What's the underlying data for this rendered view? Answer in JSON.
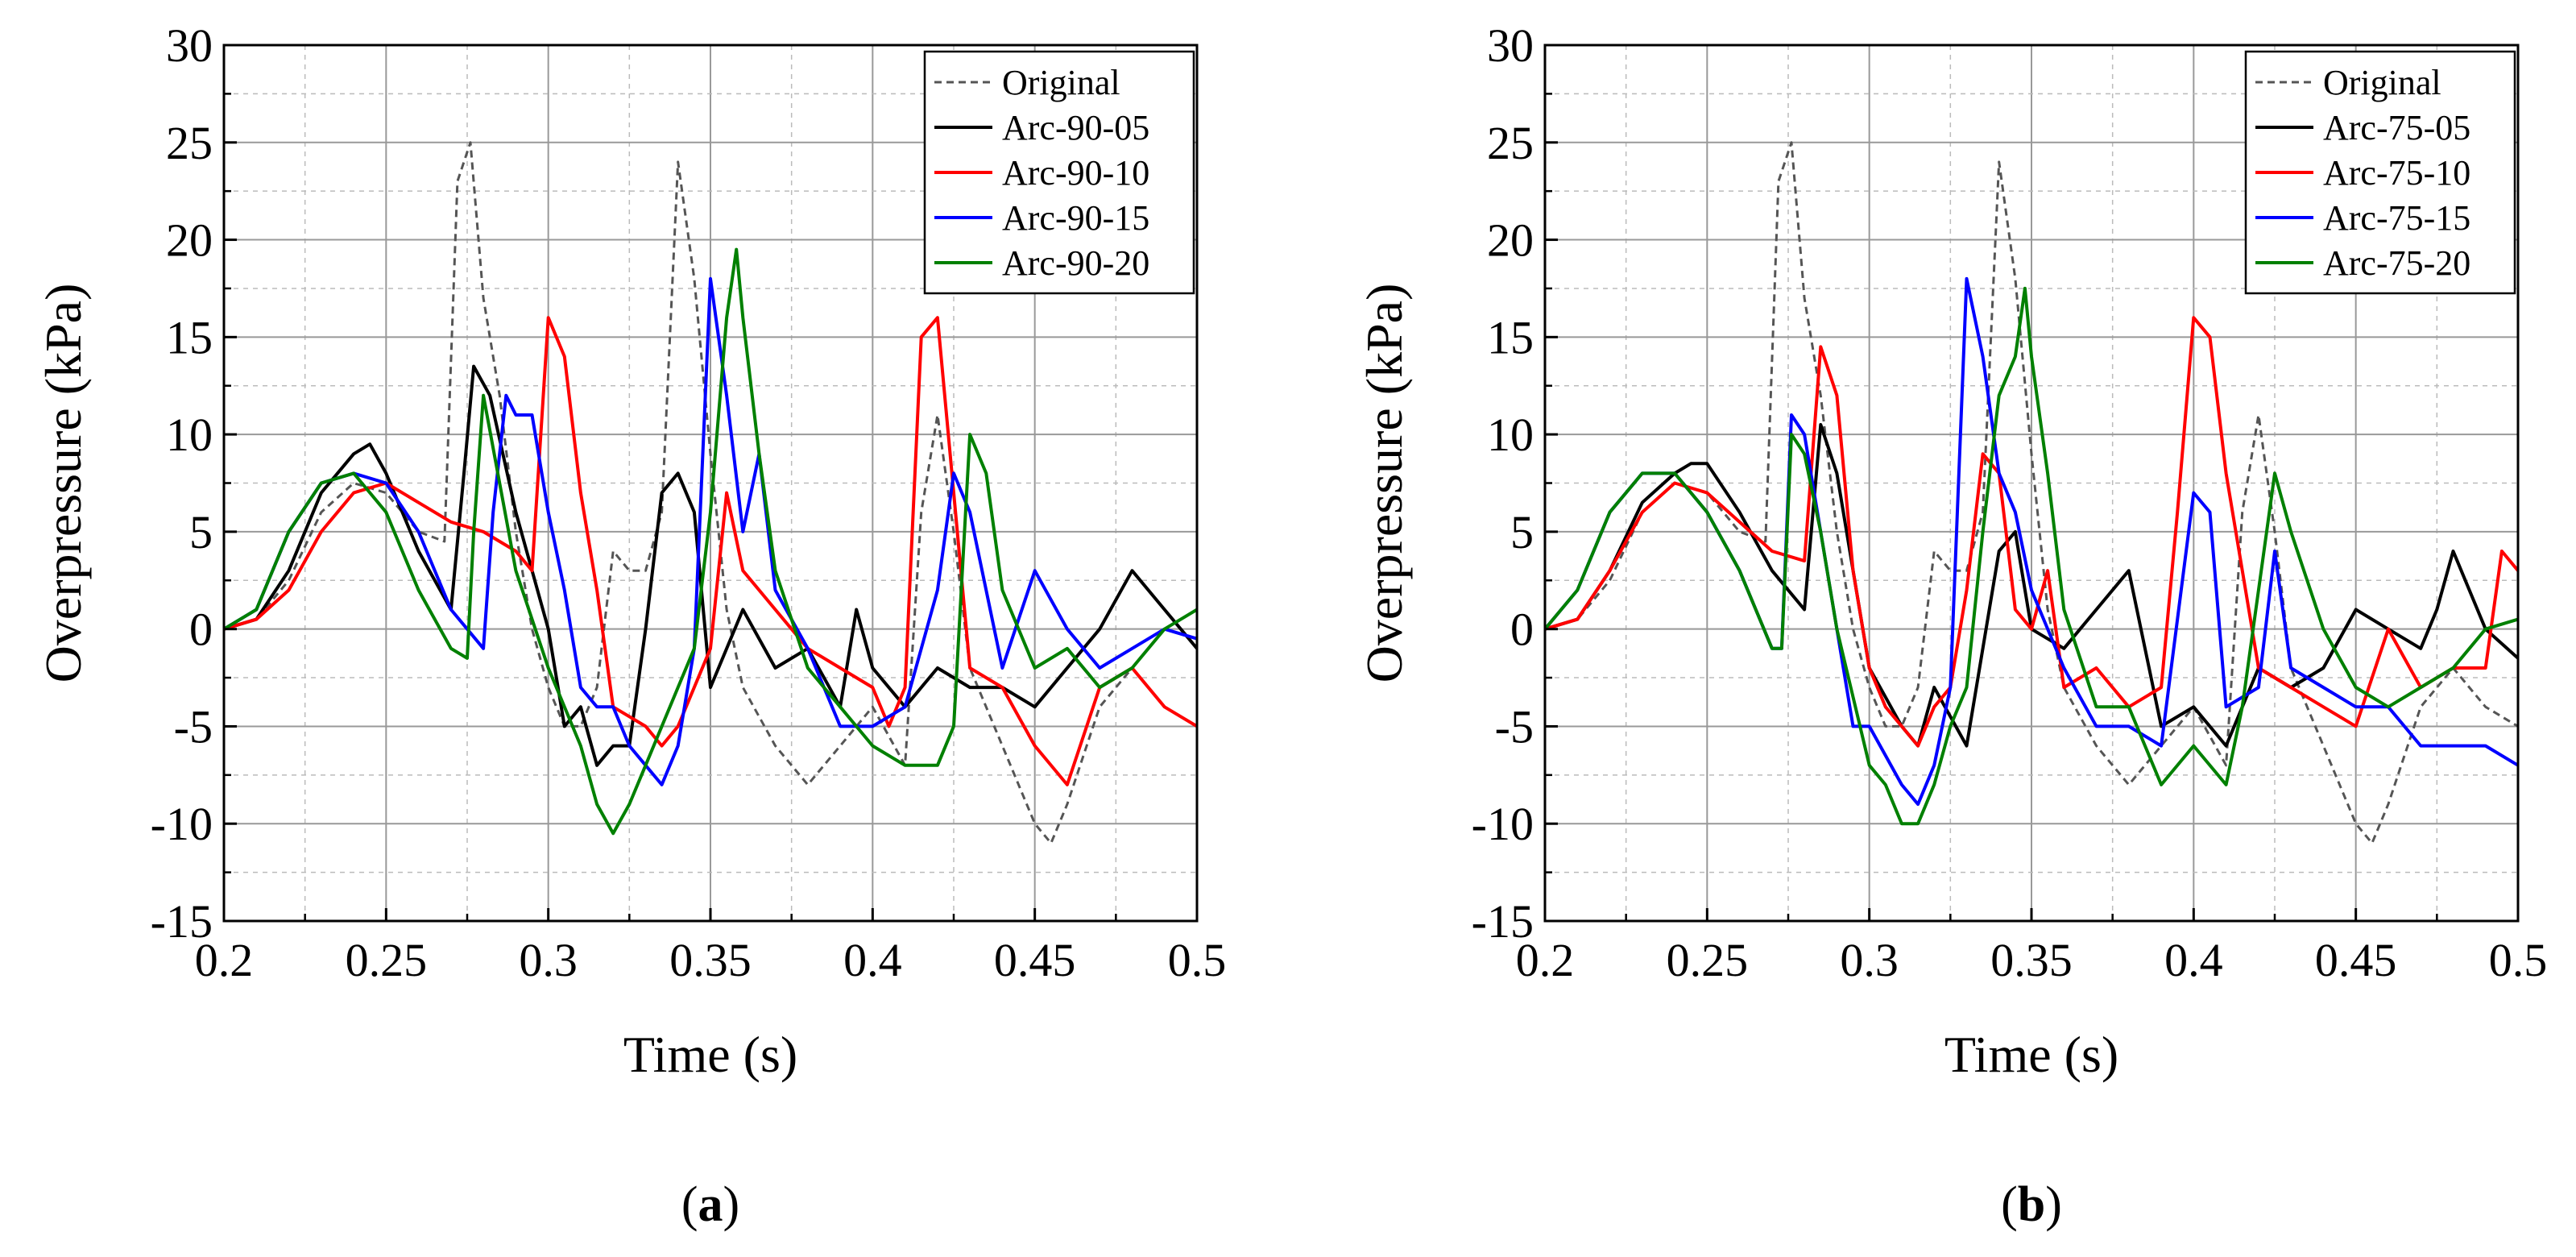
{
  "panels": [
    {
      "panel_label_open": "(",
      "panel_label_letter": "a",
      "panel_label_close": ")"
    },
    {
      "panel_label_open": "(",
      "panel_label_letter": "b",
      "panel_label_close": ")"
    }
  ],
  "chart_data": [
    {
      "type": "line",
      "title": "",
      "xlabel": "Time (s)",
      "ylabel": "Overpressure (kPa)",
      "xlim": [
        0.2,
        0.5
      ],
      "ylim": [
        -15,
        30
      ],
      "xticks": [
        0.2,
        0.25,
        0.3,
        0.35,
        0.4,
        0.45,
        0.5
      ],
      "xtick_labels": [
        "0.2",
        "0.25",
        "0.3",
        "0.35",
        "0.4",
        "0.45",
        "0.5"
      ],
      "yticks": [
        -15,
        -10,
        -5,
        0,
        5,
        10,
        15,
        20,
        25,
        30
      ],
      "ytick_labels": [
        "-15",
        "-10",
        "-5",
        "0",
        "5",
        "10",
        "15",
        "20",
        "25",
        "30"
      ],
      "grid": true,
      "legend_position": "top-right",
      "series": [
        {
          "name": "Original",
          "color": "#555555",
          "dashed": true,
          "x": [
            0.2,
            0.21,
            0.22,
            0.23,
            0.24,
            0.25,
            0.26,
            0.268,
            0.272,
            0.276,
            0.28,
            0.285,
            0.29,
            0.295,
            0.3,
            0.305,
            0.31,
            0.315,
            0.32,
            0.325,
            0.33,
            0.335,
            0.34,
            0.345,
            0.35,
            0.355,
            0.36,
            0.37,
            0.375,
            0.38,
            0.39,
            0.4,
            0.41,
            0.415,
            0.42,
            0.425,
            0.43,
            0.44,
            0.45,
            0.455,
            0.46,
            0.47,
            0.48,
            0.49,
            0.5
          ],
          "y": [
            0,
            0.5,
            2.5,
            6,
            7.5,
            7,
            5,
            4.5,
            23,
            25,
            17,
            12,
            5,
            0,
            -3,
            -5,
            -5,
            -3,
            4,
            3,
            3,
            6,
            24,
            18,
            9,
            1,
            -3,
            -6,
            -7,
            -8,
            -6,
            -4,
            -7,
            6,
            11,
            5,
            -2,
            -6,
            -10,
            -11,
            -9,
            -4,
            -2,
            -4,
            -5
          ]
        },
        {
          "name": "Arc-90-05",
          "color": "#000000",
          "dashed": false,
          "x": [
            0.2,
            0.21,
            0.22,
            0.23,
            0.24,
            0.245,
            0.25,
            0.26,
            0.27,
            0.274,
            0.277,
            0.282,
            0.29,
            0.3,
            0.305,
            0.31,
            0.315,
            0.32,
            0.325,
            0.33,
            0.335,
            0.34,
            0.345,
            0.35,
            0.36,
            0.37,
            0.38,
            0.39,
            0.395,
            0.4,
            0.41,
            0.42,
            0.43,
            0.44,
            0.45,
            0.46,
            0.47,
            0.48,
            0.49,
            0.5
          ],
          "y": [
            0,
            0.5,
            3,
            7,
            9,
            9.5,
            8,
            4,
            1,
            8,
            13.5,
            12,
            6,
            0,
            -5,
            -4,
            -7,
            -6,
            -6,
            0,
            7,
            8,
            6,
            -3,
            1,
            -2,
            -1,
            -4,
            1,
            -2,
            -4,
            -2,
            -3,
            -3,
            -4,
            -2,
            0,
            3,
            1,
            -1
          ]
        },
        {
          "name": "Arc-90-10",
          "color": "#ff0000",
          "dashed": false,
          "x": [
            0.2,
            0.21,
            0.22,
            0.23,
            0.24,
            0.25,
            0.26,
            0.27,
            0.28,
            0.29,
            0.295,
            0.3,
            0.305,
            0.31,
            0.315,
            0.32,
            0.33,
            0.335,
            0.34,
            0.35,
            0.355,
            0.36,
            0.37,
            0.38,
            0.39,
            0.4,
            0.405,
            0.41,
            0.415,
            0.42,
            0.425,
            0.43,
            0.44,
            0.45,
            0.46,
            0.47,
            0.48,
            0.49,
            0.5
          ],
          "y": [
            0,
            0.5,
            2,
            5,
            7,
            7.5,
            6.5,
            5.5,
            5,
            4,
            3,
            16,
            14,
            7,
            2,
            -4,
            -5,
            -6,
            -5,
            -1,
            7,
            3,
            1,
            -1,
            -2,
            -3,
            -5,
            -3,
            15,
            16,
            7,
            -2,
            -3,
            -6,
            -8,
            -3,
            -2,
            -4,
            -5
          ]
        },
        {
          "name": "Arc-90-15",
          "color": "#0000ff",
          "dashed": false,
          "x": [
            0.2,
            0.21,
            0.22,
            0.23,
            0.24,
            0.25,
            0.26,
            0.27,
            0.28,
            0.283,
            0.287,
            0.29,
            0.295,
            0.3,
            0.305,
            0.31,
            0.315,
            0.32,
            0.325,
            0.33,
            0.335,
            0.34,
            0.345,
            0.35,
            0.355,
            0.36,
            0.365,
            0.37,
            0.38,
            0.39,
            0.4,
            0.41,
            0.42,
            0.425,
            0.43,
            0.44,
            0.45,
            0.46,
            0.47,
            0.48,
            0.49,
            0.5
          ],
          "y": [
            0,
            1,
            5,
            7.5,
            8,
            7.5,
            5,
            1,
            -1,
            6,
            12,
            11,
            11,
            6,
            2,
            -3,
            -4,
            -4,
            -6,
            -7,
            -8,
            -6,
            -1,
            18,
            12,
            5,
            9,
            2,
            -1,
            -5,
            -5,
            -4,
            2,
            8,
            6,
            -2,
            3,
            0,
            -2,
            -1,
            0,
            -0.5
          ]
        },
        {
          "name": "Arc-90-20",
          "color": "#008000",
          "dashed": false,
          "x": [
            0.2,
            0.21,
            0.22,
            0.23,
            0.24,
            0.25,
            0.26,
            0.27,
            0.275,
            0.277,
            0.28,
            0.29,
            0.3,
            0.31,
            0.315,
            0.32,
            0.325,
            0.33,
            0.34,
            0.345,
            0.35,
            0.355,
            0.358,
            0.36,
            0.365,
            0.37,
            0.38,
            0.39,
            0.4,
            0.41,
            0.42,
            0.425,
            0.43,
            0.435,
            0.44,
            0.45,
            0.46,
            0.47,
            0.48,
            0.49,
            0.5
          ],
          "y": [
            0,
            1,
            5,
            7.5,
            8,
            6,
            2,
            -1,
            -1.5,
            5,
            12,
            3,
            -2,
            -6,
            -9,
            -10.5,
            -9,
            -7,
            -3,
            -1,
            6,
            16,
            19.5,
            16,
            9,
            3,
            -2,
            -4,
            -6,
            -7,
            -7,
            -5,
            10,
            8,
            2,
            -2,
            -1,
            -3,
            -2,
            0,
            1
          ]
        }
      ]
    },
    {
      "type": "line",
      "title": "",
      "xlabel": "Time (s)",
      "ylabel": "Overpressure (kPa)",
      "xlim": [
        0.2,
        0.5
      ],
      "ylim": [
        -15,
        30
      ],
      "xticks": [
        0.2,
        0.25,
        0.3,
        0.35,
        0.4,
        0.45,
        0.5
      ],
      "xtick_labels": [
        "0.2",
        "0.25",
        "0.3",
        "0.35",
        "0.4",
        "0.45",
        "0.5"
      ],
      "yticks": [
        -15,
        -10,
        -5,
        0,
        5,
        10,
        15,
        20,
        25,
        30
      ],
      "ytick_labels": [
        "-15",
        "-10",
        "-5",
        "0",
        "5",
        "10",
        "15",
        "20",
        "25",
        "30"
      ],
      "grid": true,
      "legend_position": "top-right",
      "series": [
        {
          "name": "Original",
          "color": "#555555",
          "dashed": true,
          "x": [
            0.2,
            0.21,
            0.22,
            0.23,
            0.24,
            0.25,
            0.26,
            0.268,
            0.272,
            0.276,
            0.28,
            0.285,
            0.29,
            0.295,
            0.3,
            0.305,
            0.31,
            0.315,
            0.32,
            0.325,
            0.33,
            0.335,
            0.34,
            0.345,
            0.35,
            0.355,
            0.36,
            0.37,
            0.375,
            0.38,
            0.39,
            0.4,
            0.41,
            0.415,
            0.42,
            0.425,
            0.43,
            0.44,
            0.45,
            0.455,
            0.46,
            0.47,
            0.48,
            0.49,
            0.5
          ],
          "y": [
            0,
            0.5,
            2.5,
            6,
            7.5,
            7,
            5,
            4.5,
            23,
            25,
            17,
            12,
            5,
            0,
            -3,
            -5,
            -5,
            -3,
            4,
            3,
            3,
            6,
            24,
            18,
            9,
            1,
            -3,
            -6,
            -7,
            -8,
            -6,
            -4,
            -7,
            6,
            11,
            5,
            -2,
            -6,
            -10,
            -11,
            -9,
            -4,
            -2,
            -4,
            -5
          ]
        },
        {
          "name": "Arc-75-05",
          "color": "#000000",
          "dashed": false,
          "x": [
            0.2,
            0.21,
            0.22,
            0.23,
            0.24,
            0.245,
            0.25,
            0.26,
            0.27,
            0.28,
            0.285,
            0.29,
            0.3,
            0.31,
            0.315,
            0.32,
            0.33,
            0.34,
            0.345,
            0.35,
            0.36,
            0.37,
            0.38,
            0.39,
            0.4,
            0.41,
            0.42,
            0.43,
            0.44,
            0.45,
            0.46,
            0.47,
            0.475,
            0.48,
            0.49,
            0.5
          ],
          "y": [
            0,
            0.5,
            3,
            6.5,
            8,
            8.5,
            8.5,
            6,
            3,
            1,
            10.5,
            8,
            -2,
            -5,
            -6,
            -3,
            -6,
            4,
            5,
            0,
            -1,
            1,
            3,
            -5,
            -4,
            -6,
            -2,
            -3,
            -2,
            1,
            0,
            -1,
            1,
            4,
            0,
            -1.5
          ]
        },
        {
          "name": "Arc-75-10",
          "color": "#ff0000",
          "dashed": false,
          "x": [
            0.2,
            0.21,
            0.22,
            0.23,
            0.24,
            0.25,
            0.26,
            0.27,
            0.28,
            0.285,
            0.29,
            0.295,
            0.3,
            0.305,
            0.31,
            0.315,
            0.32,
            0.325,
            0.33,
            0.335,
            0.34,
            0.345,
            0.35,
            0.355,
            0.36,
            0.37,
            0.38,
            0.39,
            0.395,
            0.4,
            0.405,
            0.41,
            0.42,
            0.43,
            0.44,
            0.45,
            0.46,
            0.47,
            0.48,
            0.49,
            0.495,
            0.5
          ],
          "y": [
            0,
            0.5,
            3,
            6,
            7.5,
            7,
            5.5,
            4,
            3.5,
            14.5,
            12,
            3,
            -2,
            -4,
            -5,
            -6,
            -4,
            -3,
            2,
            9,
            8,
            1,
            0,
            3,
            -3,
            -2,
            -4,
            -3,
            6,
            16,
            15,
            8,
            -2,
            -3,
            -4,
            -5,
            0,
            -3,
            -2,
            -2,
            4,
            3
          ]
        },
        {
          "name": "Arc-75-15",
          "color": "#0000ff",
          "dashed": false,
          "x": [
            0.2,
            0.21,
            0.22,
            0.23,
            0.24,
            0.25,
            0.26,
            0.27,
            0.273,
            0.276,
            0.28,
            0.285,
            0.29,
            0.295,
            0.3,
            0.31,
            0.315,
            0.32,
            0.325,
            0.33,
            0.335,
            0.34,
            0.345,
            0.35,
            0.36,
            0.37,
            0.38,
            0.39,
            0.4,
            0.405,
            0.41,
            0.42,
            0.425,
            0.43,
            0.44,
            0.45,
            0.46,
            0.47,
            0.48,
            0.49,
            0.5
          ],
          "y": [
            0,
            2,
            6,
            8,
            8,
            6,
            3,
            -1,
            -1,
            11,
            10,
            5,
            0,
            -5,
            -5,
            -8,
            -9,
            -7,
            -3,
            18,
            14,
            8,
            6,
            2,
            -2,
            -5,
            -5,
            -6,
            7,
            6,
            -4,
            -3,
            4,
            -2,
            -3,
            -4,
            -4,
            -6,
            -6,
            -6,
            -7
          ]
        },
        {
          "name": "Arc-75-20",
          "color": "#008000",
          "dashed": false,
          "x": [
            0.2,
            0.21,
            0.22,
            0.23,
            0.24,
            0.25,
            0.26,
            0.27,
            0.273,
            0.276,
            0.28,
            0.285,
            0.29,
            0.3,
            0.305,
            0.31,
            0.315,
            0.32,
            0.325,
            0.33,
            0.335,
            0.34,
            0.345,
            0.348,
            0.35,
            0.355,
            0.36,
            0.37,
            0.38,
            0.39,
            0.4,
            0.41,
            0.415,
            0.42,
            0.425,
            0.43,
            0.44,
            0.45,
            0.46,
            0.47,
            0.48,
            0.49,
            0.5
          ],
          "y": [
            0,
            2,
            6,
            8,
            8,
            6,
            3,
            -1,
            -1,
            10,
            9,
            5,
            0,
            -7,
            -8,
            -10,
            -10,
            -8,
            -5,
            -3,
            5,
            12,
            14,
            17.5,
            14,
            8,
            1,
            -4,
            -4,
            -8,
            -6,
            -8,
            -4,
            2,
            8,
            5,
            0,
            -3,
            -4,
            -3,
            -2,
            0,
            0.5
          ]
        }
      ]
    }
  ]
}
